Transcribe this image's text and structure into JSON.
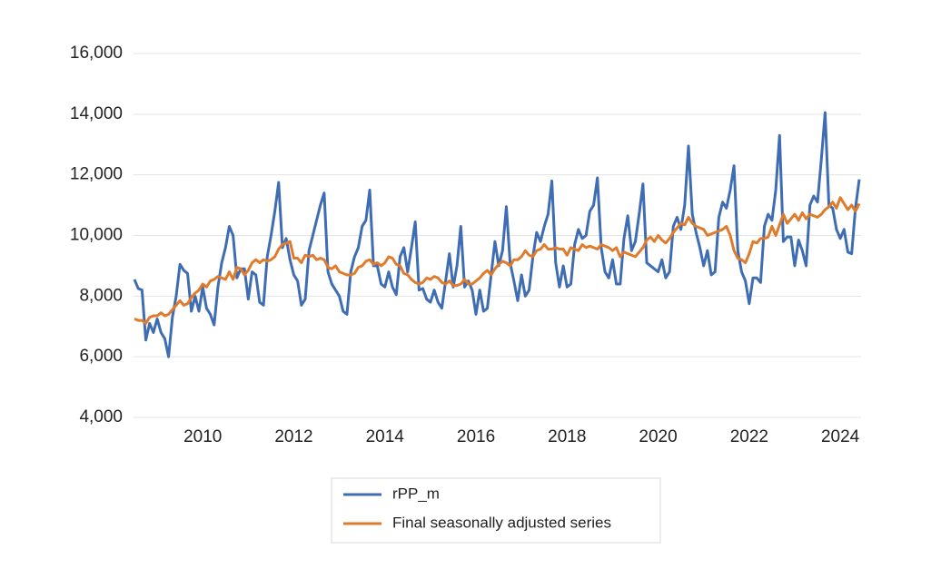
{
  "chart_data": {
    "type": "line",
    "categories": [
      null,
      null,
      null,
      null,
      null,
      null,
      null,
      null,
      null,
      null,
      null,
      null,
      null,
      null,
      null,
      null,
      null,
      null,
      "2010",
      null,
      null,
      null,
      null,
      null,
      null,
      null,
      null,
      null,
      null,
      null,
      null,
      null,
      null,
      null,
      null,
      null,
      null,
      null,
      null,
      null,
      null,
      null,
      "2012",
      null,
      null,
      null,
      null,
      null,
      null,
      null,
      null,
      null,
      null,
      null,
      null,
      null,
      null,
      null,
      null,
      null,
      null,
      null,
      null,
      null,
      null,
      null,
      "2014",
      null,
      null,
      null,
      null,
      null,
      null,
      null,
      null,
      null,
      null,
      null,
      null,
      null,
      null,
      null,
      null,
      null,
      null,
      null,
      null,
      null,
      null,
      null,
      "2016",
      null,
      null,
      null,
      null,
      null,
      null,
      null,
      null,
      null,
      null,
      null,
      null,
      null,
      null,
      null,
      null,
      null,
      null,
      null,
      null,
      null,
      null,
      null,
      "2018",
      null,
      null,
      null,
      null,
      null,
      null,
      null,
      null,
      null,
      null,
      null,
      null,
      null,
      null,
      null,
      null,
      null,
      null,
      null,
      null,
      null,
      null,
      null,
      "2020",
      null,
      null,
      null,
      null,
      null,
      null,
      null,
      null,
      null,
      null,
      null,
      null,
      null,
      null,
      null,
      null,
      null,
      null,
      null,
      null,
      null,
      null,
      null,
      "2022",
      null,
      null,
      null,
      null,
      null,
      null,
      null,
      null,
      null,
      null,
      null,
      null,
      null,
      null,
      null,
      null,
      null,
      null,
      null,
      null,
      null,
      null,
      null,
      "2024",
      null,
      null,
      null,
      null,
      null
    ],
    "series": [
      {
        "name": "rPP_m",
        "color": "#3f6db3",
        "values": [
          8550,
          8250,
          8200,
          6550,
          7100,
          6800,
          7250,
          6800,
          6600,
          6000,
          7300,
          8000,
          9050,
          8850,
          8750,
          7500,
          8000,
          7500,
          8300,
          7600,
          7400,
          7050,
          8300,
          9100,
          9600,
          10300,
          10000,
          8600,
          8900,
          8900,
          7900,
          8800,
          8700,
          7800,
          7700,
          9300,
          10000,
          10800,
          11750,
          9600,
          9900,
          9200,
          8700,
          8500,
          7700,
          7900,
          9500,
          10000,
          10500,
          11000,
          11400,
          8800,
          8400,
          8200,
          8000,
          7500,
          7400,
          8800,
          9300,
          9600,
          10300,
          10500,
          11500,
          9000,
          9000,
          8400,
          8300,
          8800,
          8300,
          8050,
          9300,
          9600,
          8800,
          9600,
          10450,
          8200,
          8250,
          7900,
          7800,
          8200,
          7800,
          7600,
          8500,
          9400,
          8300,
          9000,
          10300,
          8300,
          8500,
          8200,
          7400,
          8200,
          7500,
          7600,
          8700,
          9800,
          9000,
          9500,
          10950,
          9100,
          8500,
          7850,
          8700,
          8000,
          8200,
          9300,
          10100,
          9800,
          10300,
          10700,
          11800,
          9100,
          8300,
          9000,
          8300,
          8400,
          9700,
          10200,
          9900,
          10000,
          10800,
          11000,
          11900,
          9600,
          8800,
          8600,
          9200,
          8400,
          8400,
          9900,
          10650,
          9500,
          9800,
          10700,
          11700,
          9100,
          9000,
          8900,
          8800,
          9200,
          8600,
          8800,
          10300,
          10600,
          10200,
          11000,
          12950,
          10700,
          10100,
          9600,
          9000,
          9500,
          8700,
          8800,
          10600,
          11100,
          10900,
          11500,
          12300,
          9500,
          8800,
          8500,
          7750,
          8600,
          8600,
          8450,
          10300,
          10700,
          10500,
          11500,
          13300,
          9800,
          9950,
          9950,
          9000,
          9850,
          9500,
          9000,
          11000,
          11300,
          11100,
          12500,
          14050,
          11000,
          10900,
          10200,
          9900,
          10200,
          9450,
          9400,
          10900,
          11850
        ]
      },
      {
        "name": "Final seasonally adjusted series",
        "color": "#e07b2b",
        "values": [
          7250,
          7200,
          7200,
          7100,
          7300,
          7350,
          7350,
          7450,
          7350,
          7400,
          7550,
          7700,
          7850,
          7700,
          7750,
          7950,
          8100,
          8200,
          8400,
          8300,
          8500,
          8550,
          8650,
          8600,
          8550,
          8800,
          8550,
          8950,
          8900,
          8700,
          8850,
          9100,
          9200,
          9100,
          9200,
          9150,
          9200,
          9300,
          9550,
          9700,
          9750,
          9800,
          9250,
          9250,
          9100,
          9350,
          9300,
          9350,
          9200,
          9250,
          9200,
          8950,
          8900,
          9000,
          8800,
          8750,
          8700,
          8700,
          8750,
          8950,
          9000,
          9150,
          9200,
          9050,
          9100,
          9000,
          9100,
          9300,
          9250,
          9050,
          9000,
          8750,
          8700,
          8550,
          8450,
          8400,
          8450,
          8600,
          8550,
          8650,
          8600,
          8450,
          8400,
          8500,
          8350,
          8350,
          8400,
          8550,
          8400,
          8400,
          8500,
          8600,
          8750,
          8850,
          8700,
          8900,
          9050,
          9150,
          9100,
          9000,
          9200,
          9200,
          9300,
          9500,
          9350,
          9300,
          9500,
          9550,
          9700,
          9550,
          9550,
          9600,
          9550,
          9550,
          9350,
          9600,
          9550,
          9500,
          9700,
          9600,
          9650,
          9600,
          9550,
          9700,
          9650,
          9600,
          9500,
          9600,
          9300,
          9450,
          9400,
          9350,
          9300,
          9450,
          9600,
          9850,
          9950,
          9800,
          10000,
          9850,
          9750,
          9900,
          10100,
          10250,
          10400,
          10350,
          10600,
          10400,
          10300,
          10250,
          10200,
          10000,
          10050,
          10100,
          10150,
          10200,
          10300,
          10000,
          9500,
          9250,
          9200,
          9100,
          9400,
          9800,
          9750,
          9900,
          9900,
          9950,
          10300,
          10000,
          10350,
          10700,
          10400,
          10550,
          10700,
          10500,
          10750,
          10550,
          10700,
          10650,
          10600,
          10700,
          10850,
          10950,
          11100,
          10900,
          11250,
          11050,
          10850,
          11000,
          10800,
          11050
        ]
      }
    ],
    "ylim": [
      4000,
      16000
    ],
    "yticks": [
      {
        "value": 4000,
        "label": "4,000"
      },
      {
        "value": 6000,
        "label": "6,000"
      },
      {
        "value": 8000,
        "label": "8,000"
      },
      {
        "value": 10000,
        "label": "10,000"
      },
      {
        "value": 12000,
        "label": "12,000"
      },
      {
        "value": 14000,
        "label": "14,000"
      },
      {
        "value": 16000,
        "label": "16,000"
      }
    ],
    "grid": true
  }
}
